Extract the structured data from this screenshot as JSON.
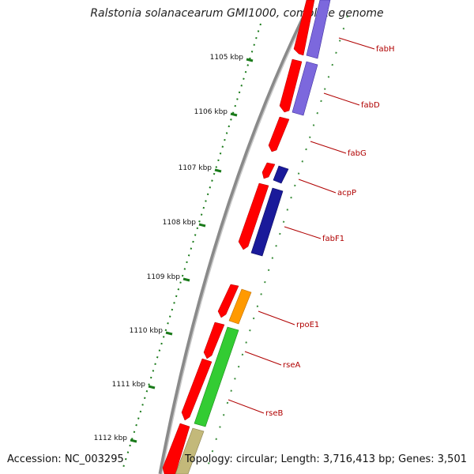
{
  "title": "Ralstonia solanacearum GMI1000, complete genome",
  "accession": "Accession: NC_003295",
  "summary": "Topology: circular; Length: 3,716,413 bp; Genes: 3,501",
  "colors": {
    "backbone": "#808080",
    "ruler": "#1a7a1a",
    "cds": "#ff0000",
    "label": "#b00000",
    "ticklabel": "#111111"
  },
  "ruler_labels": [
    "1105 kbp",
    "1106 kbp",
    "1107 kbp",
    "1108 kbp",
    "1109 kbp",
    "1110 kbp",
    "1111 kbp",
    "1112 kbp"
  ],
  "genes": [
    {
      "name": "fabH",
      "color": "#7c68dd"
    },
    {
      "name": "fabD",
      "color": "#7c68dd"
    },
    {
      "name": "fabG",
      "color": "#ff0000"
    },
    {
      "name": "acpP",
      "color": "#1a1a9a"
    },
    {
      "name": "fabF1",
      "color": "#1a1a9a"
    },
    {
      "name": "rpoE1",
      "color": "#ff9a00"
    },
    {
      "name": "rseA",
      "color": "#33cc33"
    },
    {
      "name": "rseB",
      "color": "#c3b97a"
    }
  ]
}
